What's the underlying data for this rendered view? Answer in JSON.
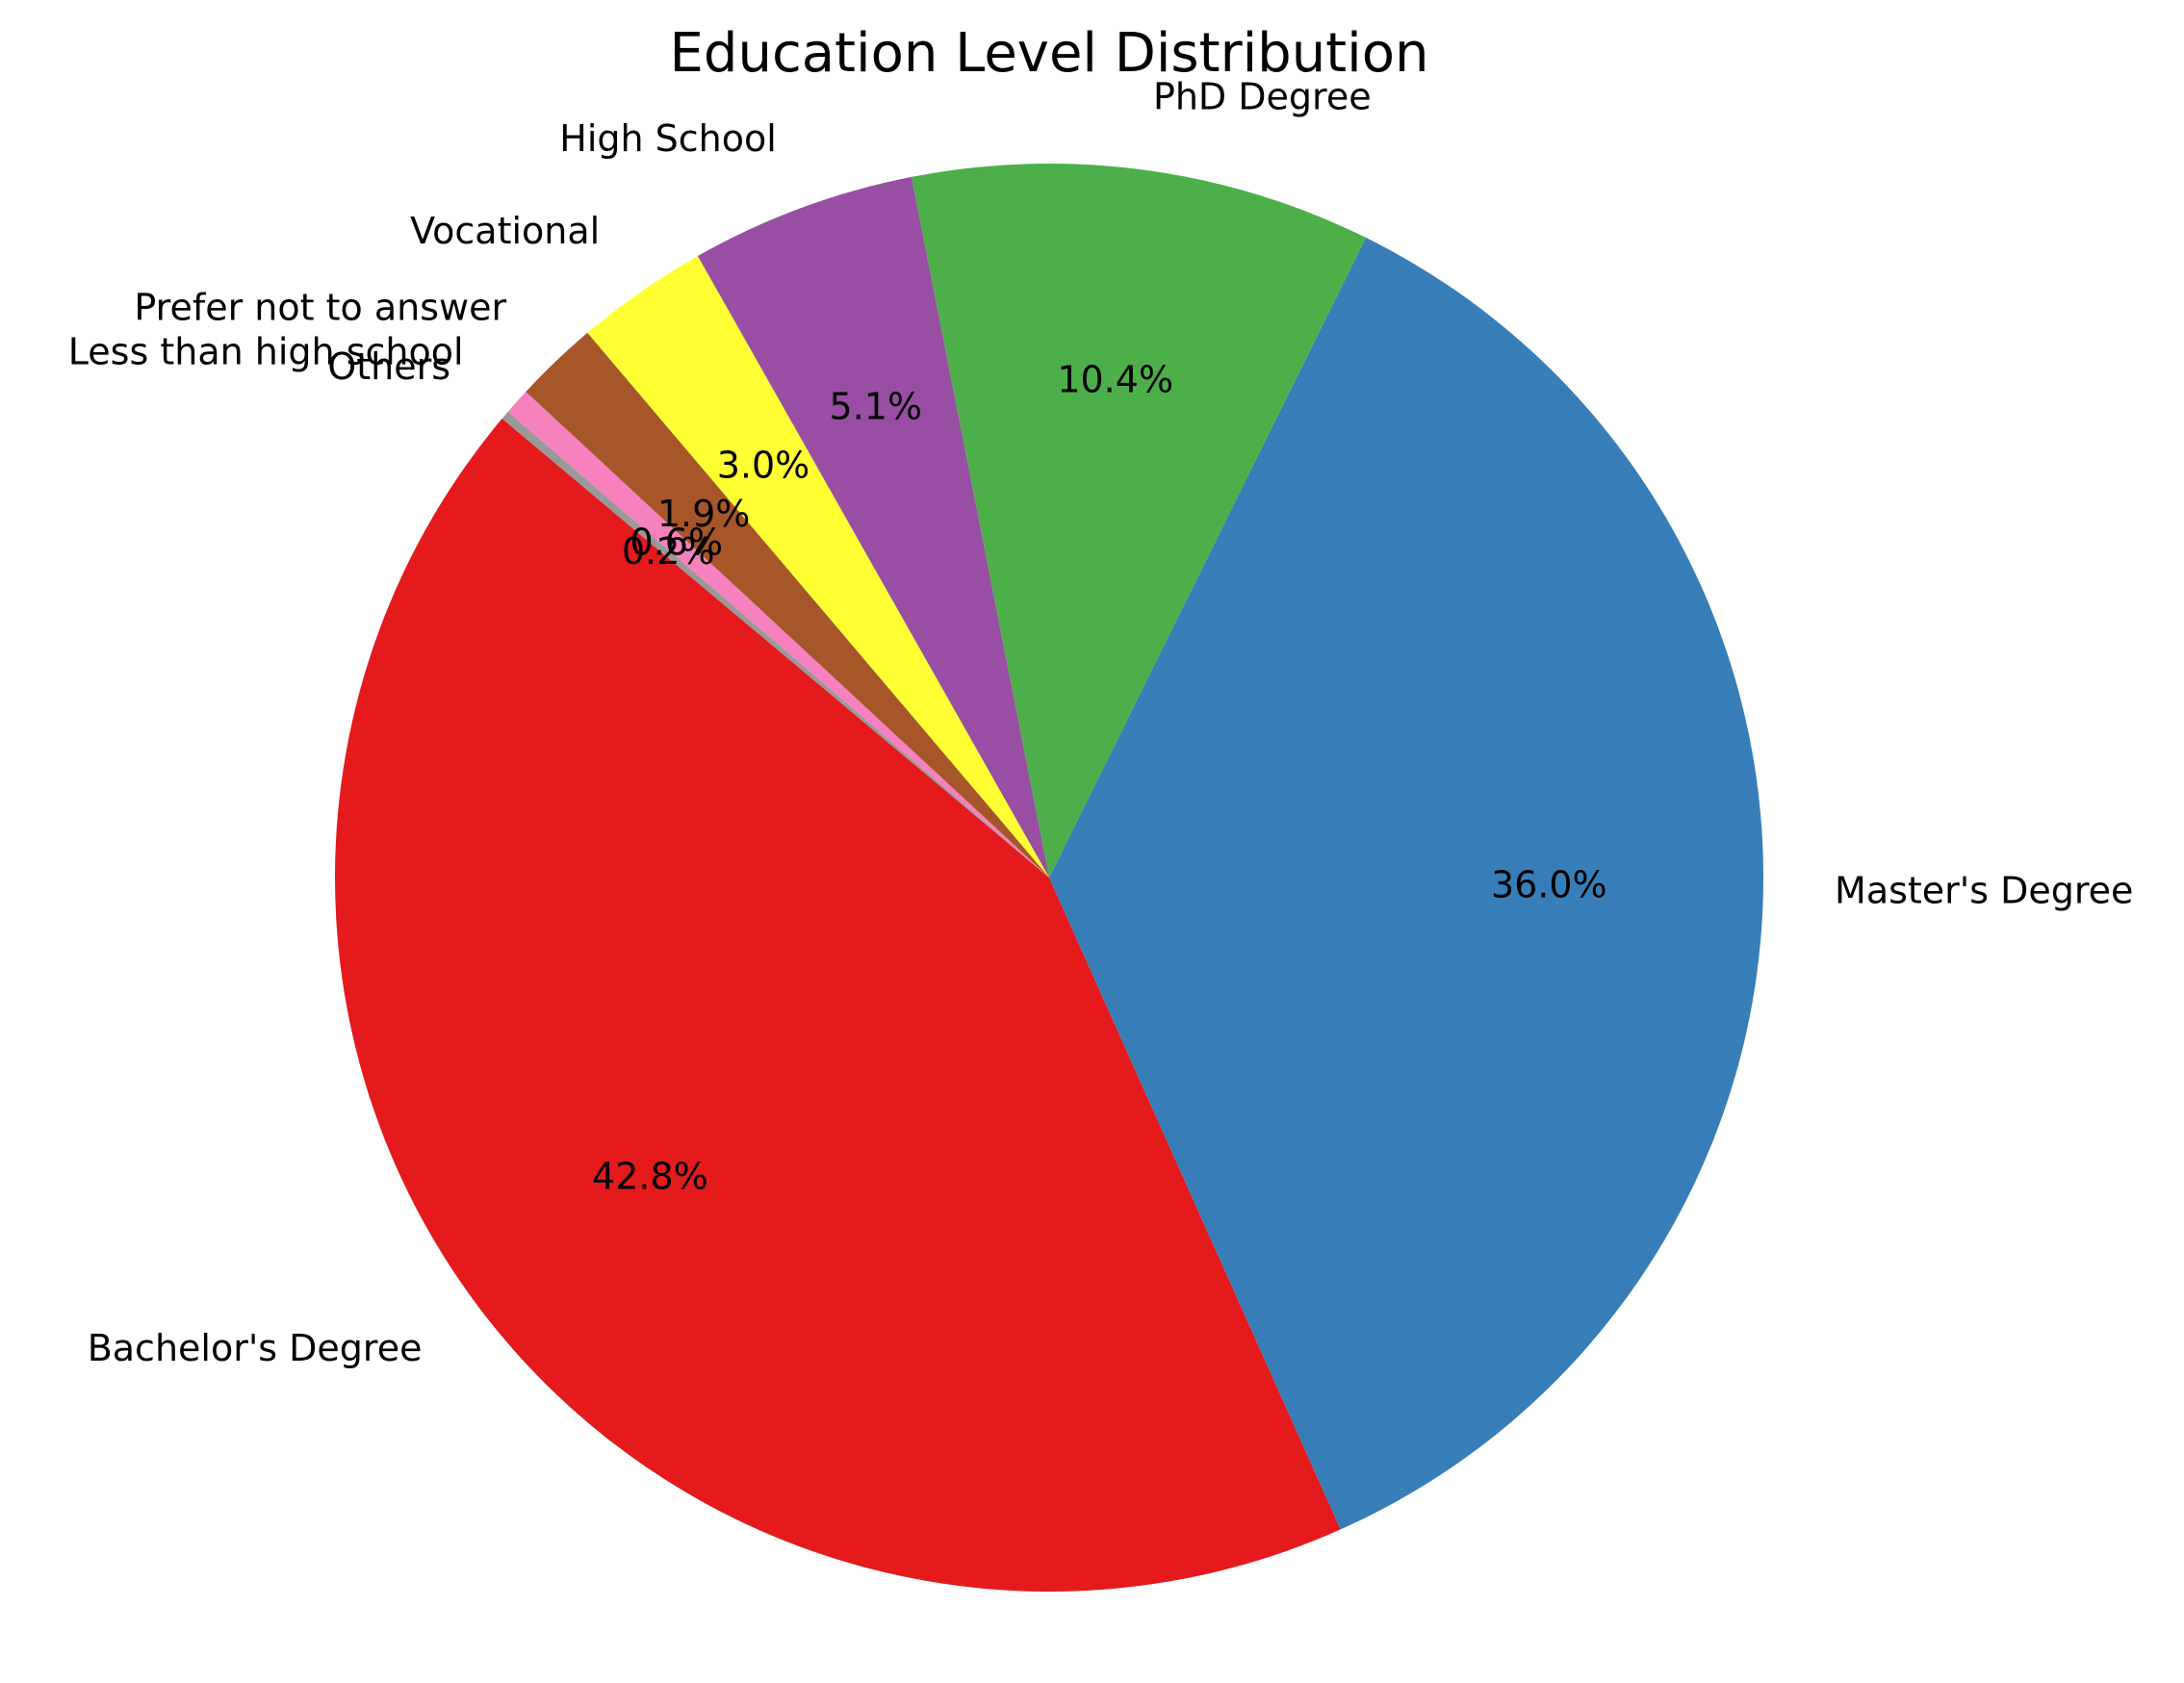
{
  "chart_data": {
    "type": "pie",
    "title": "Education Level Distribution",
    "start_angle_deg": 140,
    "direction": "counterclockwise",
    "slices": [
      {
        "label": "Bachelor's Degree",
        "value": 42.8,
        "pct_label": "42.8%",
        "color": "#e41a1c"
      },
      {
        "label": "Master's Degree",
        "value": 36.0,
        "pct_label": "36.0%",
        "color": "#377eb8"
      },
      {
        "label": "PhD Degree",
        "value": 10.4,
        "pct_label": "10.4%",
        "color": "#4daf4a"
      },
      {
        "label": "High School",
        "value": 5.1,
        "pct_label": "5.1%",
        "color": "#984ea3"
      },
      {
        "label": "Vocational",
        "value": 3.0,
        "pct_label": "3.0%",
        "color": "#ffff33"
      },
      {
        "label": "Prefer not to answer",
        "value": 1.9,
        "pct_label": "1.9%",
        "color": "#a65628"
      },
      {
        "label": "Less than high school",
        "value": 0.6,
        "pct_label": "0.6%",
        "color": "#f781bf"
      },
      {
        "label": "Others",
        "value": 0.2,
        "pct_label": "0.2%",
        "color": "#999999"
      }
    ]
  }
}
